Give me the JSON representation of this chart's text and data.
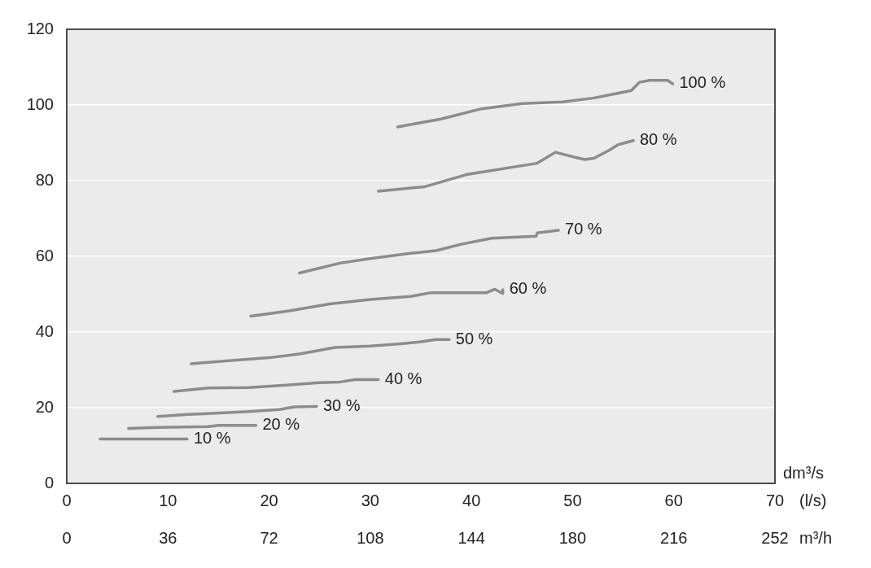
{
  "chart_data": {
    "type": "line",
    "xlabel": "dm³/s",
    "x2label": "m³/h",
    "annotations": [
      "(l/s)"
    ],
    "xlim": [
      0,
      70
    ],
    "xticks": [
      0,
      10,
      20,
      30,
      40,
      50,
      60,
      70
    ],
    "x2lim": [
      0,
      252
    ],
    "x2ticks": [
      0,
      36,
      72,
      108,
      144,
      180,
      216,
      252
    ],
    "ylim": [
      0,
      120
    ],
    "yticks": [
      0,
      20,
      40,
      60,
      80,
      100,
      120
    ],
    "grid": "y",
    "legend": false,
    "marker": "none",
    "line_style": "solid",
    "series": [
      {
        "name": "10 %",
        "color": "#8c8c8c",
        "x": [
          3.3,
          11.9
        ],
        "values": [
          11.7,
          11.7
        ]
      },
      {
        "name": "20 %",
        "color": "#8c8c8c",
        "x": [
          6.1,
          9,
          14,
          15,
          18.7
        ],
        "values": [
          14.5,
          14.8,
          15,
          15.3,
          15.3
        ]
      },
      {
        "name": "30 %",
        "color": "#8c8c8c",
        "x": [
          9,
          12,
          16,
          18,
          21,
          22.5,
          24.7
        ],
        "values": [
          17.7,
          18.2,
          18.7,
          19,
          19.5,
          20.2,
          20.3
        ]
      },
      {
        "name": "40 %",
        "color": "#8c8c8c",
        "x": [
          10.6,
          14,
          18,
          22,
          25,
          27,
          28.5,
          30.8
        ],
        "values": [
          24.3,
          25.2,
          25.3,
          26,
          26.6,
          26.8,
          27.4,
          27.4
        ]
      },
      {
        "name": "50 %",
        "color": "#8c8c8c",
        "x": [
          12.3,
          16,
          20,
          23,
          26.5,
          30,
          33,
          35,
          36.5,
          37.8
        ],
        "values": [
          31.6,
          32.4,
          33.2,
          34.2,
          35.9,
          36.3,
          36.9,
          37.4,
          38,
          38
        ]
      },
      {
        "name": "60 %",
        "color": "#8c8c8c",
        "x": [
          18.2,
          22,
          26,
          30,
          34,
          36,
          41.5,
          42.3,
          43.1,
          43.1
        ],
        "values": [
          44.2,
          45.6,
          47.4,
          48.6,
          49.4,
          50.4,
          50.4,
          51.3,
          50.2,
          51.2
        ]
      },
      {
        "name": "70 %",
        "color": "#8c8c8c",
        "x": [
          23,
          27,
          30,
          34,
          36.5,
          39,
          42,
          46.4,
          46.5,
          48.6
        ],
        "values": [
          55.6,
          58.2,
          59.4,
          60.8,
          61.5,
          63.2,
          64.8,
          65.3,
          66.2,
          66.9
        ]
      },
      {
        "name": "80 %",
        "color": "#8c8c8c",
        "x": [
          30.8,
          35.4,
          39.5,
          46.5,
          48.3,
          50.2,
          51.2,
          52.1,
          53.6,
          54.5,
          56
        ],
        "values": [
          77.2,
          78.4,
          81.6,
          84.6,
          87.5,
          86.2,
          85.6,
          85.9,
          88,
          89.5,
          90.6
        ]
      },
      {
        "name": "100 %",
        "color": "#8c8c8c",
        "x": [
          32.7,
          37,
          41,
          45,
          49,
          52,
          55.8,
          56.6,
          57.6,
          59.4,
          59.9
        ],
        "values": [
          94.2,
          96.3,
          99,
          100.4,
          100.8,
          101.8,
          103.8,
          106,
          106.5,
          106.5,
          105.6
        ]
      }
    ]
  }
}
